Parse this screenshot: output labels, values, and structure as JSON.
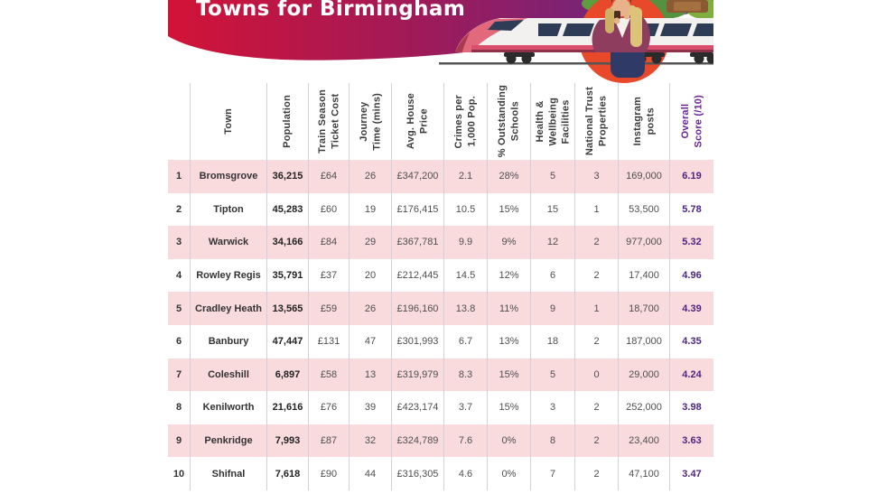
{
  "header": {
    "title": "Towns for Birmingham",
    "illustration_alt": "Commuter holding coffee in front of a high-speed train"
  },
  "colors": {
    "banner_gradient_left": "#d21337",
    "banner_gradient_mid": "#8e2065",
    "banner_gradient_right": "#5e2d87",
    "row_stripe_pink": "#f9dbde",
    "score_text_purple": "#4e2580",
    "score_header_purple": "#6b2591",
    "blob_red": "#e8492b",
    "train_stripe_pink": "#d94f6b"
  },
  "chart_data": {
    "type": "table",
    "title": "Towns for Birmingham",
    "columns": [
      "",
      "Town",
      "Population",
      "Train Season\nTicket Cost",
      "Journey\nTime (mins)",
      "Avg. House\nPrice",
      "Crimes per\n1,000 Pop.",
      "% Outstanding\nSchools",
      "Health &\nWellbeing\nFacilities",
      "National Trust\nProperties",
      "Instagram\nposts",
      "Overall\nScore (/10)"
    ],
    "rows": [
      [
        "1",
        "Bromsgrove",
        "36,215",
        "£64",
        "26",
        "£347,200",
        "2.1",
        "28%",
        "5",
        "3",
        "169,000",
        "6.19"
      ],
      [
        "2",
        "Tipton",
        "45,283",
        "£60",
        "19",
        "£176,415",
        "10.5",
        "15%",
        "15",
        "1",
        "53,500",
        "5.78"
      ],
      [
        "3",
        "Warwick",
        "34,166",
        "£84",
        "29",
        "£367,781",
        "9.9",
        "9%",
        "12",
        "2",
        "977,000",
        "5.32"
      ],
      [
        "4",
        "Rowley Regis",
        "35,791",
        "£37",
        "20",
        "£212,445",
        "14.5",
        "12%",
        "6",
        "2",
        "17,400",
        "4.96"
      ],
      [
        "5",
        "Cradley Heath",
        "13,565",
        "£59",
        "26",
        "£196,160",
        "13.8",
        "11%",
        "9",
        "1",
        "18,700",
        "4.39"
      ],
      [
        "6",
        "Banbury",
        "47,447",
        "£131",
        "47",
        "£301,993",
        "6.7",
        "13%",
        "18",
        "2",
        "187,000",
        "4.35"
      ],
      [
        "7",
        "Coleshill",
        "6,897",
        "£58",
        "13",
        "£319,979",
        "8.3",
        "15%",
        "5",
        "0",
        "29,000",
        "4.24"
      ],
      [
        "8",
        "Kenilworth",
        "21,616",
        "£76",
        "39",
        "£423,174",
        "3.7",
        "15%",
        "3",
        "2",
        "252,000",
        "3.98"
      ],
      [
        "9",
        "Penkridge",
        "7,993",
        "£87",
        "32",
        "£324,789",
        "7.6",
        "0%",
        "8",
        "2",
        "23,400",
        "3.63"
      ],
      [
        "10",
        "Shifnal",
        "7,618",
        "£90",
        "44",
        "£316,305",
        "4.6",
        "0%",
        "7",
        "2",
        "47,100",
        "3.47"
      ]
    ]
  }
}
